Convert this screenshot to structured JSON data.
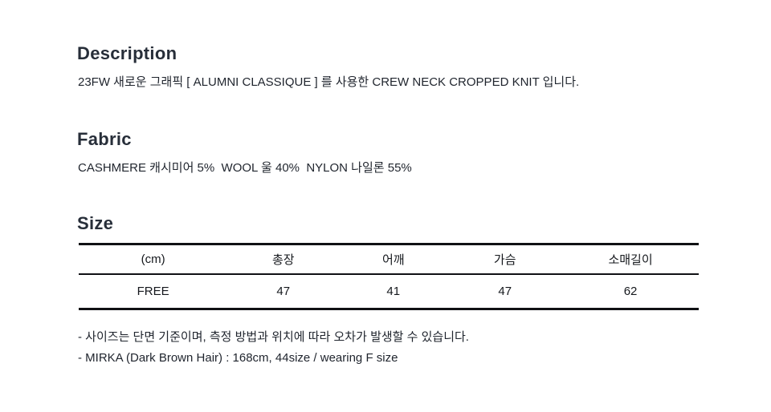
{
  "colors": {
    "background": "#ffffff",
    "heading_text": "#272e39",
    "body_text": "#1f242d",
    "table_line": "#101114"
  },
  "description": {
    "heading": "Description",
    "body": "23FW 새로운 그래픽 [ ALUMNI CLASSIQUE ] 를 사용한 CREW NECK CROPPED KNIT 입니다."
  },
  "fabric": {
    "heading": "Fabric",
    "body": "CASHMERE 캐시미어 5%  WOOL 울 40%  NYLON 나일론 55%"
  },
  "size": {
    "heading": "Size",
    "table": {
      "columns": [
        "(cm)",
        "총장",
        "어깨",
        "가슴",
        "소매길이"
      ],
      "rows": [
        [
          "FREE",
          "47",
          "41",
          "47",
          "62"
        ]
      ]
    },
    "notes": [
      "- 사이즈는 단면 기준이며, 측정 방법과 위치에 따라 오차가 발생할 수 있습니다.",
      "- MIRKA (Dark Brown Hair) : 168cm, 44size / wearing F size"
    ]
  }
}
